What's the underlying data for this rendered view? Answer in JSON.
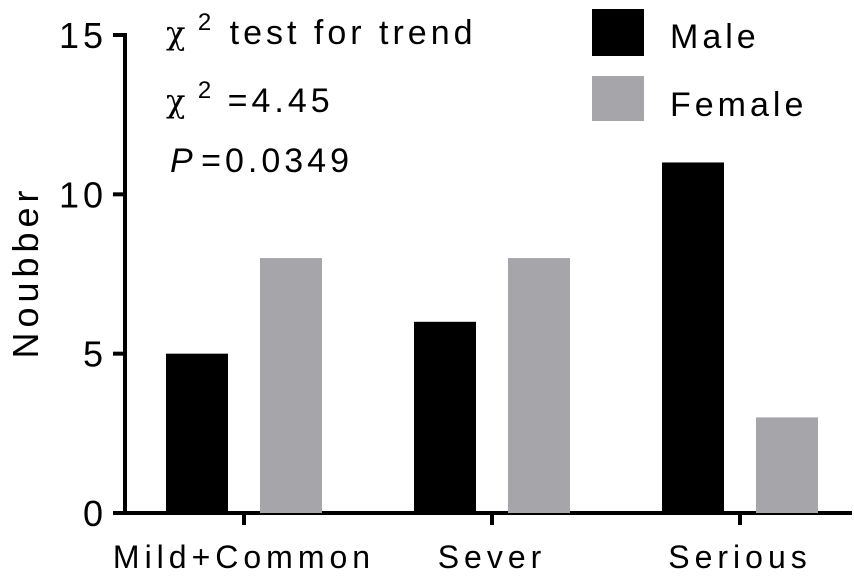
{
  "chart_data": {
    "type": "bar",
    "categories": [
      "Mild+Common",
      "Sever",
      "Serious"
    ],
    "series": [
      {
        "name": "Male",
        "color": "#000000",
        "values": [
          5,
          6,
          11
        ]
      },
      {
        "name": "Female",
        "color": "#a6a6aa",
        "values": [
          8,
          8,
          3
        ]
      }
    ],
    "ylabel": "Noubber",
    "xlabel": "",
    "ylim": [
      0,
      15
    ],
    "yticks": [
      "0",
      "5",
      "10",
      "15"
    ],
    "legend_placement": "top-right",
    "grid": false,
    "annotations": {
      "line1_symbol": "χ",
      "line1_sup": "2",
      "line1_text": "test for trend",
      "line2_symbol": "χ",
      "line2_sup": "2",
      "line2_text": "=4.45",
      "line3_p": "P",
      "line3_text": "=0.0349"
    }
  }
}
